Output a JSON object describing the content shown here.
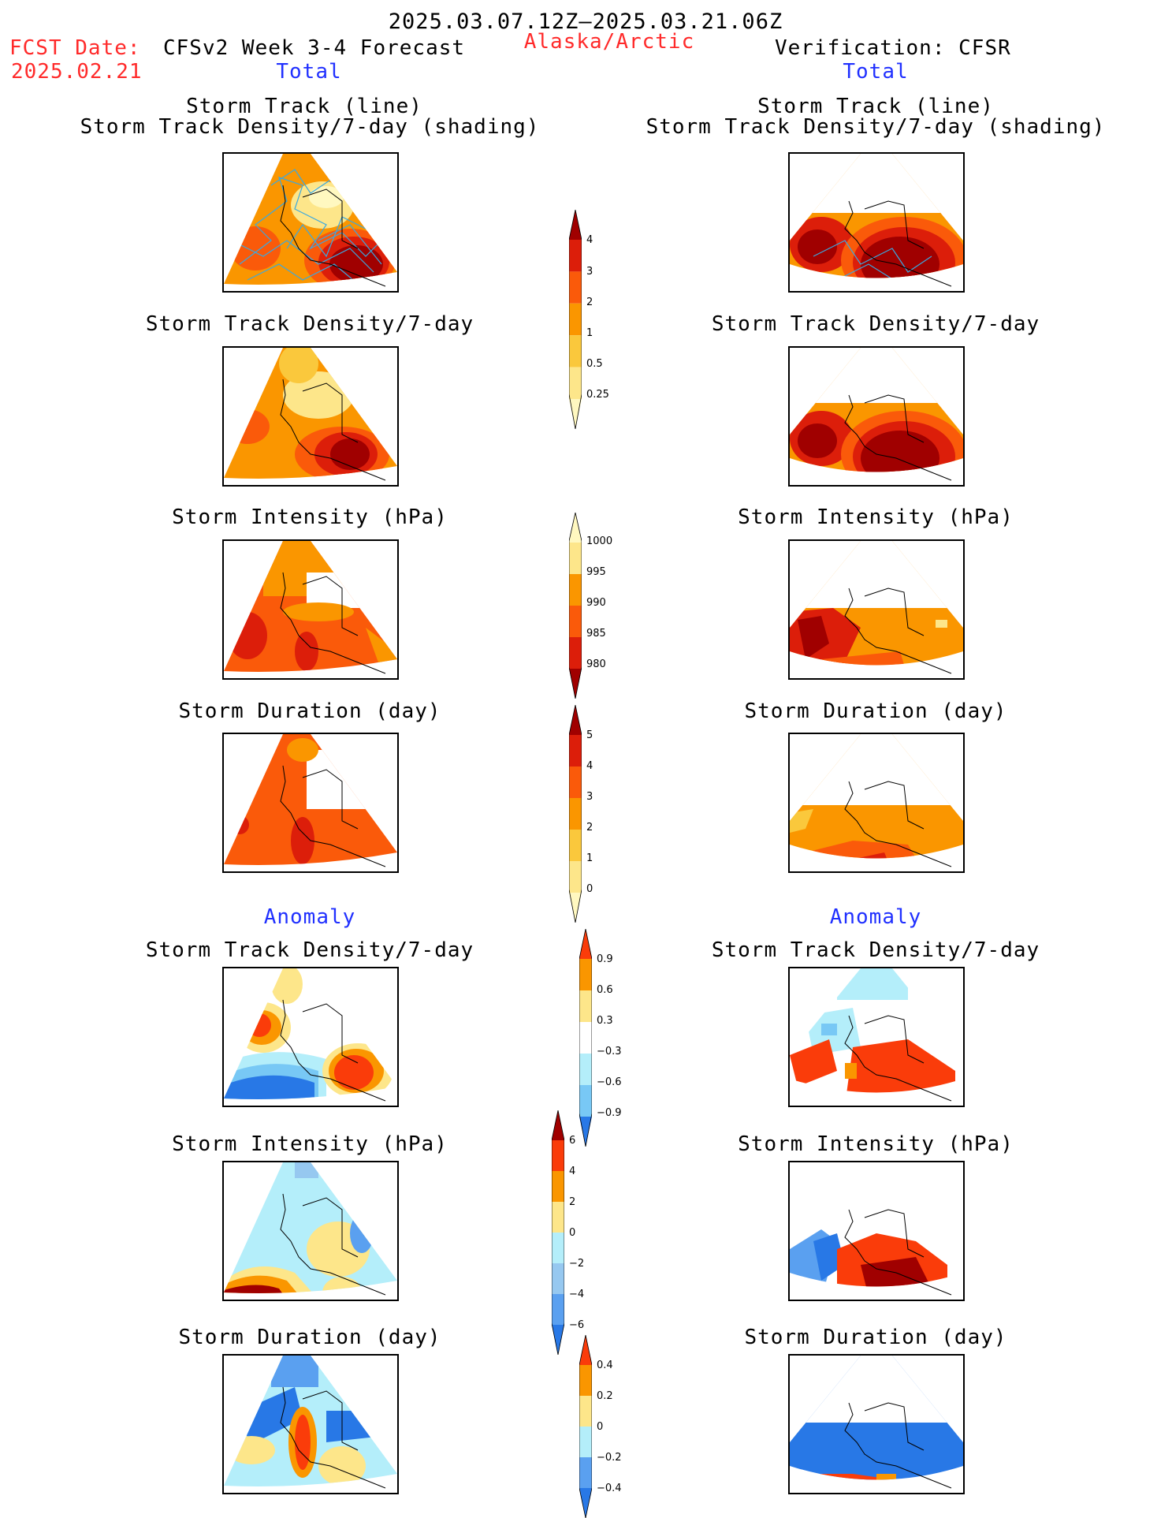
{
  "header": {
    "date_range": "2025.03.07.12Z–2025.03.21.06Z",
    "fcst_label": "FCST Date:",
    "fcst_date": "2025.02.21",
    "left_title": "CFSv2 Week 3-4 Forecast",
    "region": "Alaska/Arctic",
    "right_title": "Verification: CFSR",
    "total_left": "Total",
    "total_right": "Total",
    "anomaly_left": "Anomaly",
    "anomaly_right": "Anomaly"
  },
  "panel_titles": {
    "track_line": "Storm Track (line)",
    "track_shading": "Storm Track Density/7-day (shading)",
    "density": "Storm Track Density/7-day",
    "intensity": "Storm Intensity (hPa)",
    "duration": "Storm Duration (day)"
  },
  "colorbars": {
    "density_total": {
      "labels": [
        "4",
        "3",
        "2",
        "1",
        "0.5",
        "0.25"
      ],
      "colors": [
        "#a00000",
        "#dc1e0a",
        "#fa5a0a",
        "#fa9600",
        "#fac83c",
        "#fde68a",
        "#fff8c0"
      ]
    },
    "intensity_total": {
      "labels": [
        "1000",
        "995",
        "990",
        "985",
        "980"
      ],
      "colors": [
        "#fff8c0",
        "#fde68a",
        "#fa9600",
        "#fa5a0a",
        "#dc1e0a",
        "#a00000"
      ]
    },
    "duration_total": {
      "labels": [
        "5",
        "4",
        "3",
        "2",
        "1",
        "0"
      ],
      "colors": [
        "#a00000",
        "#dc1e0a",
        "#fa5a0a",
        "#fa9600",
        "#fac83c",
        "#fde68a",
        "#fff8c0"
      ]
    },
    "density_anom": {
      "labels": [
        "0.9",
        "0.6",
        "0.3",
        "−0.3",
        "−0.6",
        "−0.9"
      ],
      "colors": [
        "#fa3c0a",
        "#fa9600",
        "#fde68a",
        "#ffffff",
        "#b4eefa",
        "#78c8f5",
        "#2878e6"
      ]
    },
    "intensity_anom": {
      "labels": [
        "6",
        "4",
        "2",
        "0",
        "−2",
        "−4",
        "−6"
      ],
      "colors": [
        "#a00000",
        "#fa3c0a",
        "#fa9600",
        "#fde68a",
        "#b4eefa",
        "#96c8f0",
        "#5aa0f0",
        "#2878e6"
      ]
    },
    "duration_anom": {
      "labels": [
        "0.4",
        "0.2",
        "0",
        "−0.2",
        "−0.4"
      ],
      "colors": [
        "#fa3c0a",
        "#fa9600",
        "#fde68a",
        "#b4eefa",
        "#5aa0f0",
        "#2878e6"
      ]
    }
  }
}
